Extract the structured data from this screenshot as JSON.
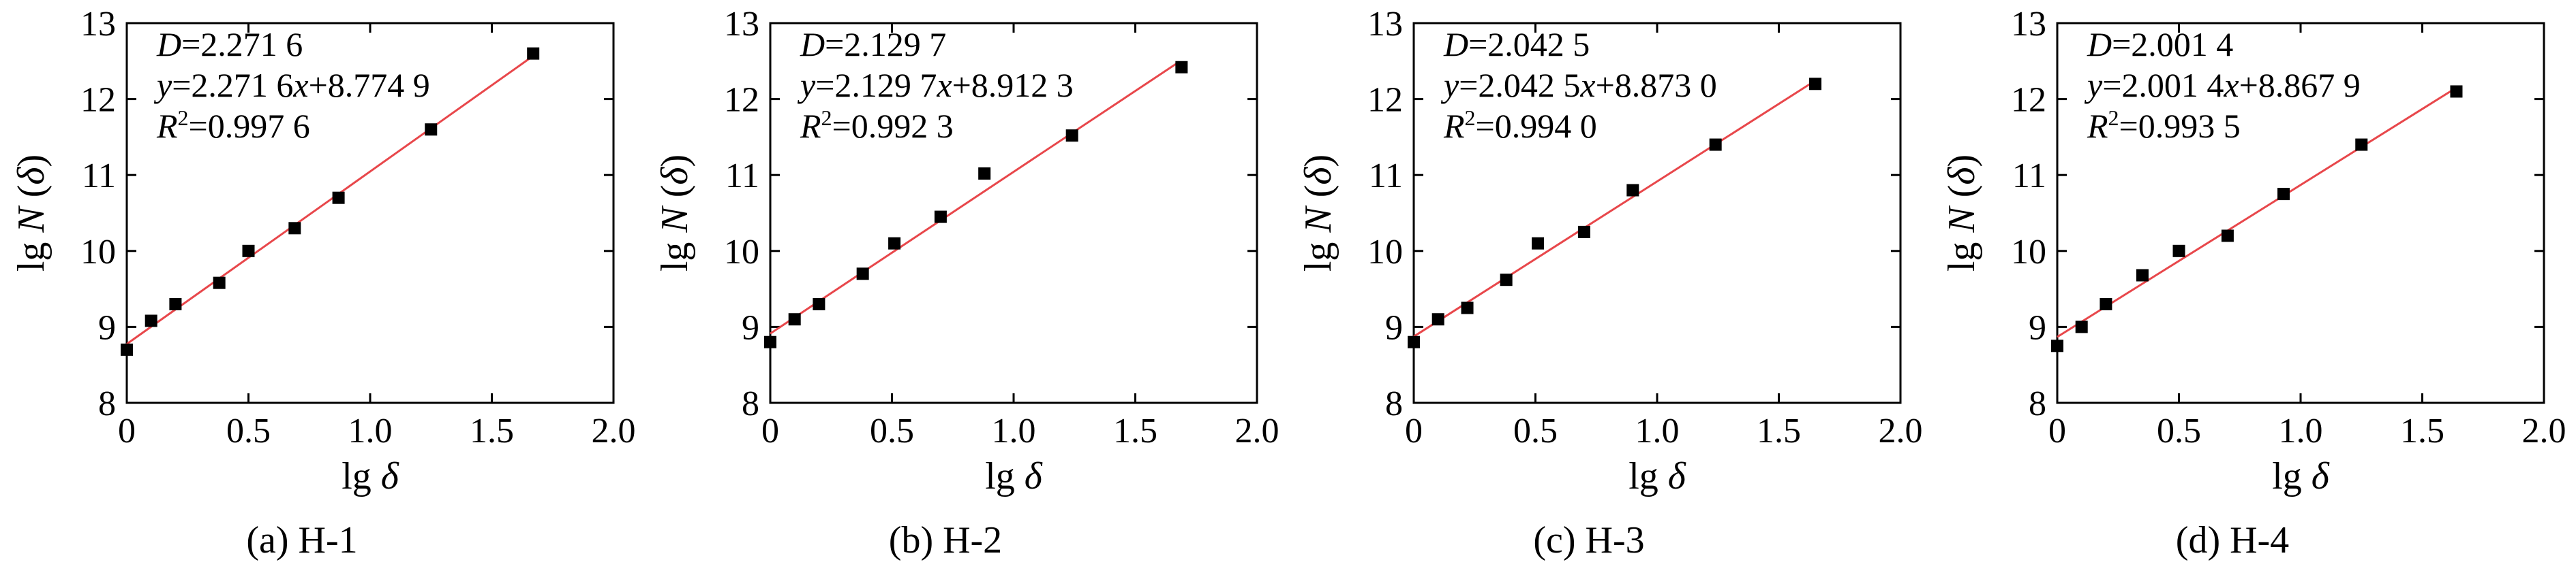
{
  "chart_data": [
    {
      "type": "scatter",
      "caption": "(a) H-1",
      "xlabel": "lg δ",
      "ylabel": "lg N (δ)",
      "xlim": [
        0,
        2.0
      ],
      "ylim": [
        8,
        13
      ],
      "xticks": [
        "0",
        "0.5",
        "1.0",
        "1.5",
        "2.0"
      ],
      "yticks": [
        "8",
        "9",
        "10",
        "11",
        "12",
        "13"
      ],
      "annotations": [
        "D=2.271 6",
        "y=2.271 6x+8.774 9",
        "R²=0.997 6"
      ],
      "fit": {
        "slope": 2.2716,
        "intercept": 8.7749,
        "x_range": [
          0,
          1.67
        ],
        "color": "#e8474b"
      },
      "points": {
        "x": [
          0.0,
          0.1,
          0.2,
          0.38,
          0.5,
          0.69,
          0.87,
          1.25,
          1.67
        ],
        "y": [
          8.7,
          9.08,
          9.3,
          9.58,
          10.0,
          10.3,
          10.7,
          11.6,
          12.6
        ]
      }
    },
    {
      "type": "scatter",
      "caption": "(b) H-2",
      "xlabel": "lg δ",
      "ylabel": "lg N (δ)",
      "xlim": [
        0,
        2.0
      ],
      "ylim": [
        8,
        13
      ],
      "xticks": [
        "0",
        "0.5",
        "1.0",
        "1.5",
        "2.0"
      ],
      "yticks": [
        "8",
        "9",
        "10",
        "11",
        "12",
        "13"
      ],
      "annotations": [
        "D=2.129 7",
        "y=2.129 7x+8.912 3",
        "R²=0.992 3"
      ],
      "fit": {
        "slope": 2.1297,
        "intercept": 8.9123,
        "x_range": [
          0,
          1.68
        ],
        "color": "#e8474b"
      },
      "points": {
        "x": [
          0.0,
          0.1,
          0.2,
          0.38,
          0.51,
          0.7,
          0.88,
          1.24,
          1.69
        ],
        "y": [
          8.8,
          9.1,
          9.3,
          9.7,
          10.1,
          10.45,
          11.02,
          11.52,
          12.42
        ]
      }
    },
    {
      "type": "scatter",
      "caption": "(c) H-3",
      "xlabel": "lg δ",
      "ylabel": "lg N (δ)",
      "xlim": [
        0,
        2.0
      ],
      "ylim": [
        8,
        13
      ],
      "xticks": [
        "0",
        "0.5",
        "1.0",
        "1.5",
        "2.0"
      ],
      "yticks": [
        "8",
        "9",
        "10",
        "11",
        "12",
        "13"
      ],
      "annotations": [
        "D=2.042 5",
        "y=2.042 5x+8.873 0",
        "R²=0.994 0"
      ],
      "fit": {
        "slope": 2.0425,
        "intercept": 8.873,
        "x_range": [
          0,
          1.65
        ],
        "color": "#e8474b"
      },
      "points": {
        "x": [
          0.0,
          0.1,
          0.22,
          0.38,
          0.51,
          0.7,
          0.9,
          1.24,
          1.65
        ],
        "y": [
          8.8,
          9.1,
          9.25,
          9.62,
          10.1,
          10.25,
          10.8,
          11.4,
          12.2
        ]
      }
    },
    {
      "type": "scatter",
      "caption": "(d) H-4",
      "xlabel": "lg δ",
      "ylabel": "lg N (δ)",
      "xlim": [
        0,
        2.0
      ],
      "ylim": [
        8,
        13
      ],
      "xticks": [
        "0",
        "0.5",
        "1.0",
        "1.5",
        "2.0"
      ],
      "yticks": [
        "8",
        "9",
        "10",
        "11",
        "12",
        "13"
      ],
      "annotations": [
        "D=2.001 4",
        "y=2.001 4x+8.867 9",
        "R²=0.993 5"
      ],
      "fit": {
        "slope": 2.0014,
        "intercept": 8.8679,
        "x_range": [
          0,
          1.64
        ],
        "color": "#e8474b"
      },
      "points": {
        "x": [
          0.0,
          0.1,
          0.2,
          0.35,
          0.5,
          0.7,
          0.93,
          1.25,
          1.64
        ],
        "y": [
          8.75,
          9.0,
          9.3,
          9.68,
          10.0,
          10.2,
          10.75,
          11.4,
          12.1
        ]
      }
    }
  ]
}
